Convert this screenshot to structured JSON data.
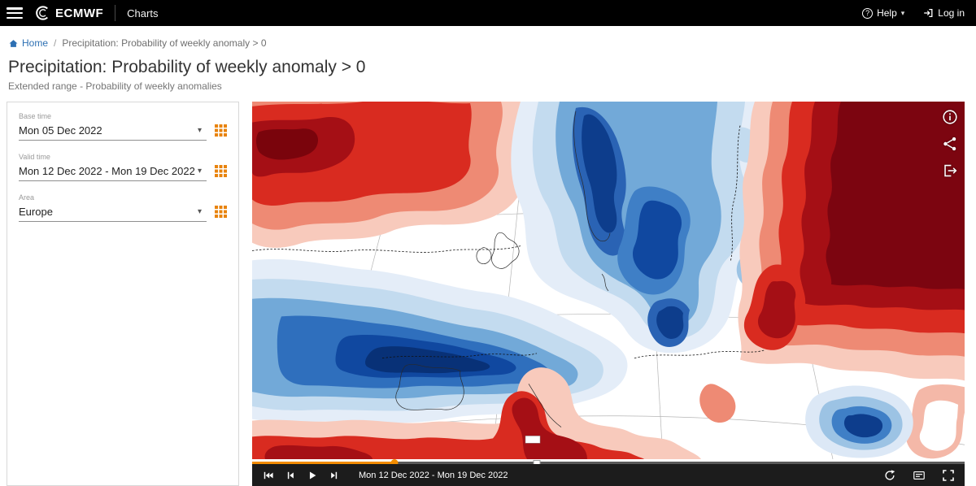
{
  "navbar": {
    "brand": "ECMWF",
    "app_label": "Charts",
    "help_label": "Help",
    "login_label": "Log in"
  },
  "icons": {
    "caret": "▾",
    "help_glyph": "?"
  },
  "breadcrumb": {
    "home_label": "Home",
    "separator": "/",
    "current": "Precipitation: Probability of weekly anomaly > 0"
  },
  "page": {
    "title": "Precipitation: Probability of weekly anomaly > 0",
    "subtitle": "Extended range - Probability of weekly anomalies"
  },
  "sidebar": {
    "fields": [
      {
        "label": "Base time",
        "value": "Mon 05 Dec 2022"
      },
      {
        "label": "Valid time",
        "value": "Mon 12 Dec 2022 - Mon 19 Dec 2022"
      },
      {
        "label": "Area",
        "value": "Europe"
      }
    ]
  },
  "map": {
    "overlay_buttons": [
      "info",
      "share",
      "export"
    ]
  },
  "player": {
    "time_label": "Mon 12 Dec 2022 - Mon 19 Dec 2022",
    "progress_percent": 20,
    "tick_percent": 40
  },
  "colors": {
    "accent_orange": "#e8830c",
    "slider_orange": "#f28c00",
    "link_blue": "#2d70b3",
    "navbar_bg": "#000000",
    "control_bar_bg": "#1c1c1c",
    "map_red_dark": "#7c0510",
    "map_red": "#d92b20",
    "map_blue": "#2f6fbd",
    "map_blue_dark": "#0d3d8c"
  }
}
